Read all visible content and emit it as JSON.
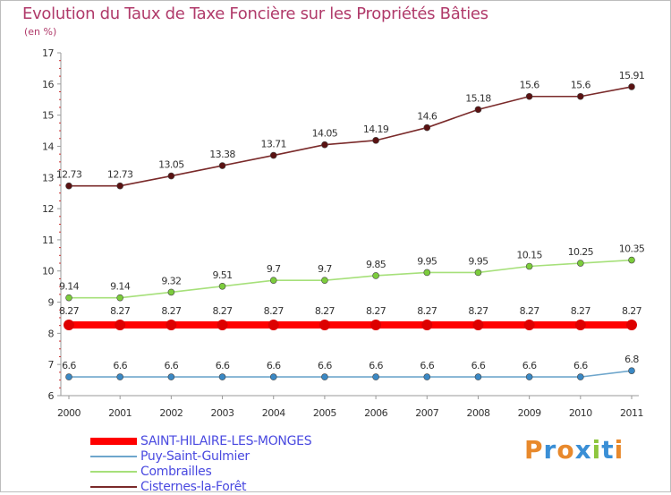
{
  "title": "Evolution du Taux de Taxe Foncière sur les Propriétés Bâties",
  "unit": "(en %)",
  "logo": {
    "text": "Proxiti",
    "colors": [
      "#e8892c",
      "#3a8fd6",
      "#e8892c",
      "#3a8fd6",
      "#8ec63f",
      "#3a8fd6",
      "#e8892c"
    ]
  },
  "chart_data": {
    "type": "line",
    "title": "Evolution du Taux de Taxe Foncière sur les Propriétés Bâties",
    "xlabel": "",
    "ylabel": "(en %)",
    "x": [
      "2000",
      "2001",
      "2002",
      "2003",
      "2004",
      "2005",
      "2006",
      "2007",
      "2008",
      "2009",
      "2010",
      "2011"
    ],
    "ylim": [
      6,
      17
    ],
    "yticks": [
      "6",
      "7",
      "8",
      "9",
      "10",
      "11",
      "12",
      "13",
      "14",
      "15",
      "16",
      "17"
    ],
    "grid": false,
    "legend_position": "bottom-left",
    "series": [
      {
        "name": "SAINT-HILAIRE-LES-MONGES",
        "color": "#ff0000",
        "marker": "#dd0000",
        "thick": true,
        "values": [
          8.27,
          8.27,
          8.27,
          8.27,
          8.27,
          8.27,
          8.27,
          8.27,
          8.27,
          8.27,
          8.27,
          8.27
        ],
        "labels": [
          "8.27",
          "8.27",
          "8.27",
          "8.27",
          "8.27",
          "8.27",
          "8.27",
          "8.27",
          "8.27",
          "8.27",
          "8.27",
          "8.27"
        ]
      },
      {
        "name": "Puy-Saint-Gulmier",
        "color": "#6ea6cc",
        "marker": "#3a88c4",
        "thick": false,
        "values": [
          6.6,
          6.6,
          6.6,
          6.6,
          6.6,
          6.6,
          6.6,
          6.6,
          6.6,
          6.6,
          6.6,
          6.8
        ],
        "labels": [
          "6.6",
          "6.6",
          "6.6",
          "6.6",
          "6.6",
          "6.6",
          "6.6",
          "6.6",
          "6.6",
          "6.6",
          "6.6",
          "6.8"
        ]
      },
      {
        "name": "Combrailles",
        "color": "#a6e07a",
        "marker": "#7ccc3c",
        "thick": false,
        "values": [
          9.14,
          9.14,
          9.32,
          9.51,
          9.7,
          9.7,
          9.85,
          9.95,
          9.95,
          10.15,
          10.25,
          10.35
        ],
        "labels": [
          "9.14",
          "9.14",
          "9.32",
          "9.51",
          "9.7",
          "9.7",
          "9.85",
          "9.95",
          "9.95",
          "10.15",
          "10.25",
          "10.35"
        ]
      },
      {
        "name": "Cisternes-la-Forêt",
        "color": "#7a2a2a",
        "marker": "#5a1212",
        "thick": false,
        "values": [
          12.73,
          12.73,
          13.05,
          13.38,
          13.71,
          14.05,
          14.19,
          14.6,
          15.18,
          15.6,
          15.6,
          15.91
        ],
        "labels": [
          "12.73",
          "12.73",
          "13.05",
          "13.38",
          "13.71",
          "14.05",
          "14.19",
          "14.6",
          "15.18",
          "15.6",
          "15.6",
          "15.91"
        ]
      }
    ],
    "legend": [
      {
        "name": "SAINT-HILAIRE-LES-MONGES",
        "color": "#ff0000",
        "text_color": "#4a4ae0",
        "thick": true
      },
      {
        "name": "Puy-Saint-Gulmier",
        "color": "#6ea6cc",
        "text_color": "#4a4ae0",
        "thick": false
      },
      {
        "name": "Combrailles",
        "color": "#a6e07a",
        "text_color": "#4a4ae0",
        "thick": false
      },
      {
        "name": "Cisternes-la-Forêt",
        "color": "#7a2a2a",
        "text_color": "#4a4ae0",
        "thick": false
      }
    ]
  }
}
